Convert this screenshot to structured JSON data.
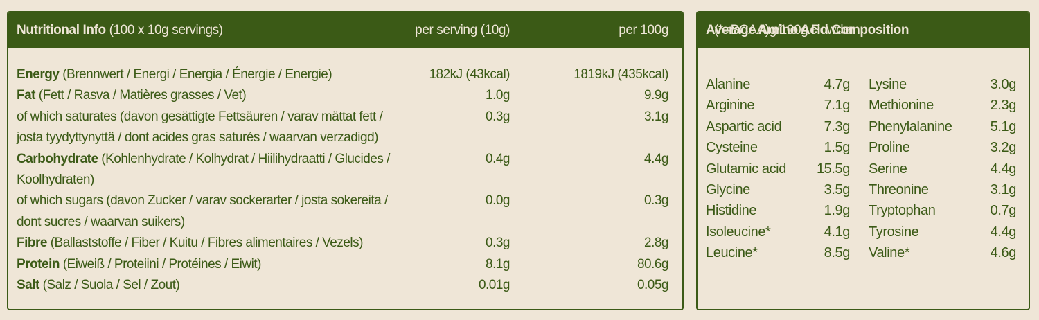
{
  "nutrition": {
    "header": {
      "title_bold": "Nutritional Info",
      "title_rest": " (100 x 10g servings)",
      "col_serving": "per serving (10g)",
      "col_100g": "per 100g"
    },
    "rows": [
      {
        "bold": "Energy",
        "rest": " (Brennwert / Energi / Energia / Énergie / Energie)",
        "serving": "182kJ (43kcal)",
        "per100": "1819kJ (435kcal)"
      },
      {
        "bold": "Fat",
        "rest": " (Fett / Rasva / Matières grasses / Vet)",
        "serving": "1.0g",
        "per100": "9.9g"
      },
      {
        "bold": "",
        "rest": "of which saturates  (davon gesättigte Fettsäuren / varav mättat fett / josta tyydyttynyttä / dont acides gras saturés / waarvan verzadigd)",
        "serving": "0.3g",
        "per100": "3.1g"
      },
      {
        "bold": "Carbohydrate",
        "rest": " (Kohlenhydrate / Kolhydrat / Hiilihydraatti / Glucides / Koolhydraten)",
        "serving": "0.4g",
        "per100": "4.4g"
      },
      {
        "bold": "",
        "rest": "of which sugars (davon Zucker / varav sockerarter / josta sokereita / dont sucres / waarvan suikers)",
        "serving": "0.0g",
        "per100": "0.3g"
      },
      {
        "bold": "Fibre",
        "rest": " (Ballaststoffe / Fiber / Kuitu / Fibres alimentaires / Vezels)",
        "serving": "0.3g",
        "per100": "2.8g"
      },
      {
        "bold": "Protein",
        "rest": " (Eiweiß / Proteiini / Protéines / Eiwit)",
        "serving": "8.1g",
        "per100": "80.6g"
      },
      {
        "bold": "Salt",
        "rest": "  (Salz / Suola / Sel / Zout)",
        "serving": "0.01g",
        "per100": "0.05g"
      }
    ]
  },
  "amino": {
    "header": {
      "title_bold": "Average Amino Acid Composition",
      "title_rest": " (*=BCAA)g/100g Powder"
    },
    "left": [
      {
        "name": "Alanine",
        "value": "4.7g"
      },
      {
        "name": "Arginine",
        "value": "7.1g"
      },
      {
        "name": "Aspartic acid",
        "value": "7.3g"
      },
      {
        "name": "Cysteine",
        "value": "1.5g"
      },
      {
        "name": "Glutamic acid",
        "value": "15.5g"
      },
      {
        "name": "Glycine",
        "value": "3.5g"
      },
      {
        "name": "Histidine",
        "value": "1.9g"
      },
      {
        "name": "Isoleucine*",
        "value": "4.1g"
      },
      {
        "name": "Leucine*",
        "value": "8.5g"
      }
    ],
    "right": [
      {
        "name": "Lysine",
        "value": "3.0g"
      },
      {
        "name": "Methionine",
        "value": "2.3g"
      },
      {
        "name": "Phenylalanine",
        "value": "5.1g"
      },
      {
        "name": "Proline",
        "value": "3.2g"
      },
      {
        "name": "Serine",
        "value": "4.4g"
      },
      {
        "name": "Threonine",
        "value": "3.1g"
      },
      {
        "name": "Tryptophan",
        "value": "0.7g"
      },
      {
        "name": "Tyrosine",
        "value": "4.4g"
      },
      {
        "name": "Valine*",
        "value": "4.6g"
      }
    ]
  },
  "colors": {
    "brand_green": "#3b5a16",
    "background": "#efe6d7"
  }
}
